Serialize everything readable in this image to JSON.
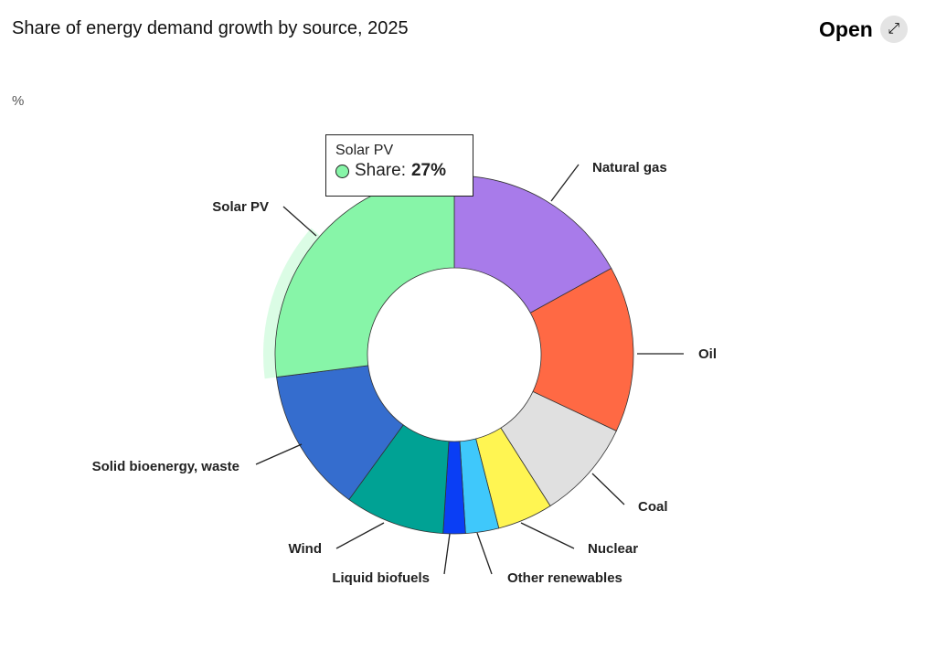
{
  "header": {
    "title": "Share of energy demand growth by source, 2025",
    "open_label": "Open",
    "open_icon": "expand-arrows-icon"
  },
  "unit": "%",
  "tooltip": {
    "title": "Solar PV",
    "label": "Share:",
    "value": "27%",
    "color": "#87f5a8"
  },
  "chart_data": {
    "type": "pie",
    "variant": "donut",
    "title": "Share of energy demand growth by source, 2025",
    "unit": "%",
    "labels": [
      "Natural gas",
      "Oil",
      "Coal",
      "Nuclear",
      "Other renewables",
      "Liquid biofuels",
      "Wind",
      "Solid bioenergy, waste",
      "Solar PV"
    ],
    "values": [
      17,
      15,
      9,
      5,
      3,
      2,
      9,
      13,
      27
    ],
    "colors": [
      "#a87bea",
      "#ff6944",
      "#e0e0e0",
      "#fff552",
      "#3fc8fb",
      "#0a3ef5",
      "#00a294",
      "#356dce",
      "#87f5a8"
    ],
    "highlighted": "Solar PV"
  }
}
